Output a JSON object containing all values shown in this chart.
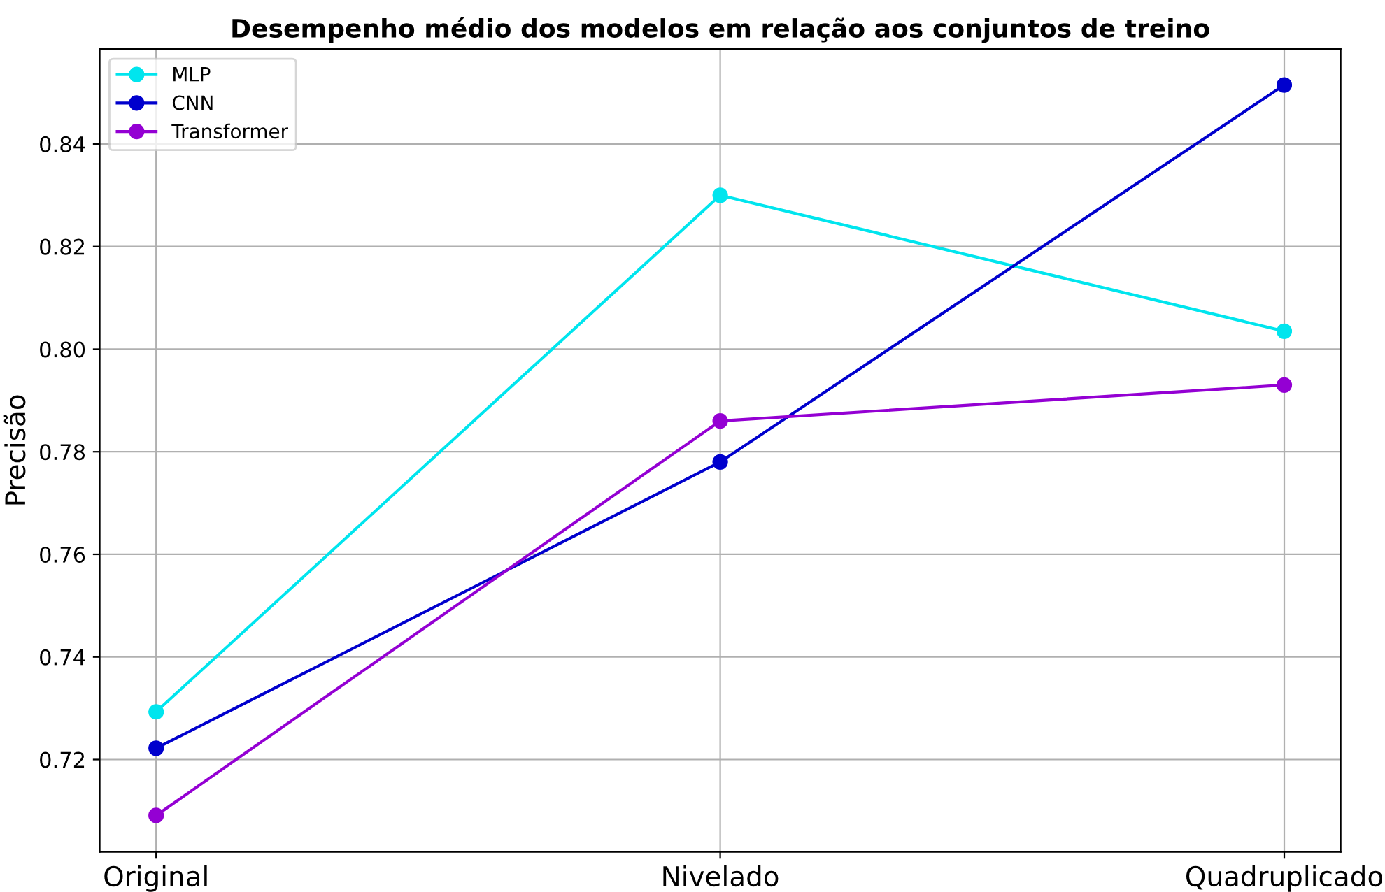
{
  "chart_data": {
    "type": "line",
    "title": "Desempenho médio dos modelos em relação aos conjuntos de treino",
    "ylabel": "Precisão",
    "categories": [
      "Original",
      "Nivelado",
      "Quadruplicado"
    ],
    "series": [
      {
        "name": "MLP",
        "color": "#00e5ee",
        "values": [
          0.7293,
          0.83,
          0.8035
        ]
      },
      {
        "name": "CNN",
        "color": "#0000cd",
        "values": [
          0.7222,
          0.778,
          0.8515
        ]
      },
      {
        "name": "Transformer",
        "color": "#9400d3",
        "values": [
          0.7091,
          0.786,
          0.793
        ]
      }
    ],
    "ylim": [
      0.702,
      0.8585
    ],
    "yticks": [
      0.72,
      0.74,
      0.76,
      0.78,
      {
        "value": 0.8,
        "label": "0.80"
      },
      0.82,
      0.84
    ],
    "grid": true,
    "legend": "top left",
    "marker": "circle",
    "line_style": "solid"
  }
}
